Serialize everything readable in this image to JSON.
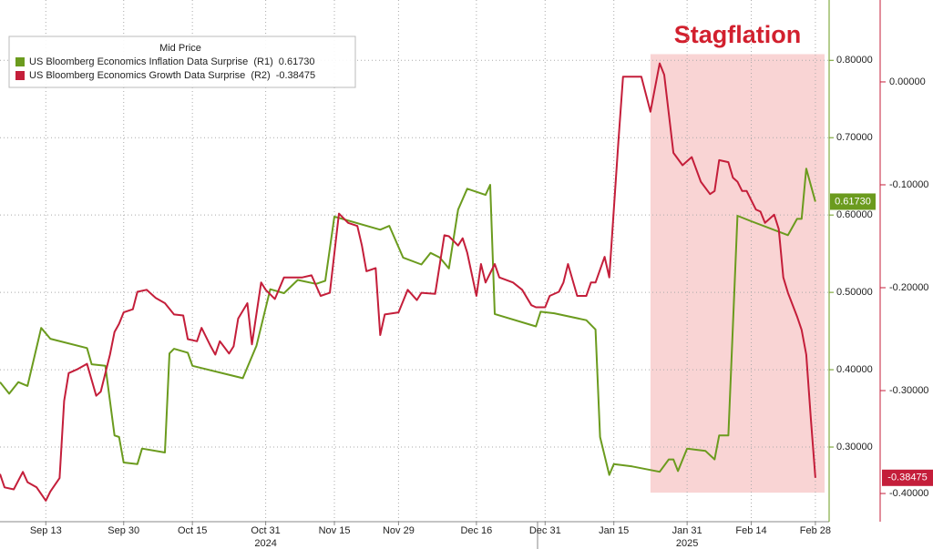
{
  "chart_data": {
    "type": "line",
    "legend_title": "Mid Price",
    "legend": "upper left",
    "grid": true,
    "xlim": [
      "2024-09-03",
      "2025-03-03"
    ],
    "xticks": [
      {
        "value": "2024-09-13",
        "label": "Sep 13"
      },
      {
        "value": "2024-09-30",
        "label": "Sep 30"
      },
      {
        "value": "2024-10-15",
        "label": "Oct 15"
      },
      {
        "value": "2024-10-31",
        "label": "Oct 31"
      },
      {
        "value": "2024-11-15",
        "label": "Nov 15"
      },
      {
        "value": "2024-11-29",
        "label": "Nov 29"
      },
      {
        "value": "2024-12-16",
        "label": "Dec 16"
      },
      {
        "value": "2024-12-31",
        "label": "Dec 31"
      },
      {
        "value": "2025-01-15",
        "label": "Jan 15"
      },
      {
        "value": "2025-01-31",
        "label": "Jan 31"
      },
      {
        "value": "2025-02-14",
        "label": "Feb 14"
      },
      {
        "value": "2025-02-28",
        "label": "Feb 28"
      }
    ],
    "year_labels": [
      {
        "value": "2024-10-31",
        "label": "2024"
      },
      {
        "value": "2025-01-31",
        "label": "2025"
      }
    ],
    "ylim": [
      0.2035,
      0.878
    ],
    "yticks": [
      {
        "value": 0.8,
        "label": "0.80000"
      },
      {
        "value": 0.7,
        "label": "0.70000"
      },
      {
        "value": 0.6,
        "label": "0.60000"
      },
      {
        "value": 0.5,
        "label": "0.50000"
      },
      {
        "value": 0.4,
        "label": "0.40000"
      },
      {
        "value": 0.3,
        "label": "0.30000"
      }
    ],
    "y2lim": [
      -0.4274,
      0.0796
    ],
    "y2ticks": [
      {
        "value": 0,
        "label": "0.00000"
      },
      {
        "value": -0.1,
        "label": "-0.10000"
      },
      {
        "value": -0.2,
        "label": "-0.20000"
      },
      {
        "value": -0.3,
        "label": "-0.30000"
      },
      {
        "value": -0.4,
        "label": "-0.40000"
      }
    ],
    "shade": {
      "label": "Stagflation",
      "x": [
        "2025-01-23",
        "2025-03-02"
      ],
      "y": [
        0.808,
        0.241
      ],
      "color": "#f9d4d4",
      "label_color": "#d2202e"
    },
    "series": [
      {
        "name": "US Bloomberg Economics Inflation Data Surprise  (R1)",
        "last_label": "0.61730",
        "color": "#6b9b1e",
        "axis": "y",
        "x": [
          "2024-09-03",
          "2024-09-05",
          "2024-09-07",
          "2024-09-09",
          "2024-09-12",
          "2024-09-14",
          "2024-09-22",
          "2024-09-23",
          "2024-09-26",
          "2024-09-28",
          "2024-09-29",
          "2024-09-30",
          "2024-10-03",
          "2024-10-04",
          "2024-10-09",
          "2024-10-10",
          "2024-10-11",
          "2024-10-14",
          "2024-10-15",
          "2024-10-26",
          "2024-10-29",
          "2024-11-01",
          "2024-11-04",
          "2024-11-07",
          "2024-11-11",
          "2024-11-13",
          "2024-11-15",
          "2024-11-25",
          "2024-11-27",
          "2024-11-30",
          "2024-12-04",
          "2024-12-06",
          "2024-12-08",
          "2024-12-10",
          "2024-12-12",
          "2024-12-14",
          "2024-12-18",
          "2024-12-19",
          "2024-12-20",
          "2024-12-29",
          "2024-12-30",
          "2025-01-02",
          "2025-01-09",
          "2025-01-11",
          "2025-01-12",
          "2025-01-14",
          "2025-01-15",
          "2025-01-19",
          "2025-01-25",
          "2025-01-27",
          "2025-01-28",
          "2025-01-29",
          "2025-01-31",
          "2025-02-04",
          "2025-02-06",
          "2025-02-07",
          "2025-02-09",
          "2025-02-11",
          "2025-02-14",
          "2025-02-22",
          "2025-02-24",
          "2025-02-25",
          "2025-02-26",
          "2025-02-28"
        ],
        "values": [
          0.384,
          0.369,
          0.384,
          0.379,
          0.454,
          0.44,
          0.428,
          0.407,
          0.405,
          0.315,
          0.313,
          0.28,
          0.278,
          0.298,
          0.293,
          0.421,
          0.427,
          0.422,
          0.405,
          0.389,
          0.431,
          0.504,
          0.499,
          0.516,
          0.511,
          0.515,
          0.598,
          0.581,
          0.586,
          0.545,
          0.536,
          0.551,
          0.545,
          0.531,
          0.607,
          0.634,
          0.626,
          0.639,
          0.472,
          0.456,
          0.475,
          0.473,
          0.464,
          0.452,
          0.313,
          0.264,
          0.278,
          0.275,
          0.268,
          0.284,
          0.284,
          0.269,
          0.298,
          0.295,
          0.284,
          0.315,
          0.315,
          0.599,
          0.592,
          0.574,
          0.595,
          0.595,
          0.66,
          0.6173
        ]
      },
      {
        "name": "US Bloomberg Economics Growth Data Surprise  (R2)",
        "last_label": "-0.38475",
        "color": "#c41e3a",
        "axis": "y2",
        "x": [
          "2024-09-03",
          "2024-09-04",
          "2024-09-06",
          "2024-09-08",
          "2024-09-09",
          "2024-09-11",
          "2024-09-13",
          "2024-09-14",
          "2024-09-16",
          "2024-09-17",
          "2024-09-18",
          "2024-09-20",
          "2024-09-22",
          "2024-09-24",
          "2024-09-25",
          "2024-09-27",
          "2024-09-28",
          "2024-09-29",
          "2024-09-30",
          "2024-10-02",
          "2024-10-03",
          "2024-10-05",
          "2024-10-07",
          "2024-10-09",
          "2024-10-11",
          "2024-10-13",
          "2024-10-14",
          "2024-10-16",
          "2024-10-17",
          "2024-10-19",
          "2024-10-20",
          "2024-10-21",
          "2024-10-23",
          "2024-10-24",
          "2024-10-25",
          "2024-10-27",
          "2024-10-28",
          "2024-10-30",
          "2024-10-31",
          "2024-11-02",
          "2024-11-04",
          "2024-11-06",
          "2024-11-08",
          "2024-11-10",
          "2024-11-12",
          "2024-11-14",
          "2024-11-16",
          "2024-11-18",
          "2024-11-20",
          "2024-11-21",
          "2024-11-22",
          "2024-11-24",
          "2024-11-25",
          "2024-11-26",
          "2024-11-29",
          "2024-12-01",
          "2024-12-03",
          "2024-12-04",
          "2024-12-07",
          "2024-12-09",
          "2024-12-10",
          "2024-12-12",
          "2024-12-13",
          "2024-12-14",
          "2024-12-16",
          "2024-12-17",
          "2024-12-18",
          "2024-12-20",
          "2024-12-21",
          "2024-12-24",
          "2024-12-26",
          "2024-12-28",
          "2024-12-29",
          "2024-12-31",
          "2025-01-01",
          "2025-01-03",
          "2025-01-04",
          "2025-01-05",
          "2025-01-07",
          "2025-01-09",
          "2025-01-10",
          "2025-01-11",
          "2025-01-13",
          "2025-01-14",
          "2025-01-16",
          "2025-01-17",
          "2025-01-21",
          "2025-01-23",
          "2025-01-25",
          "2025-01-26",
          "2025-01-28",
          "2025-01-30",
          "2025-02-01",
          "2025-02-03",
          "2025-02-05",
          "2025-02-06",
          "2025-02-07",
          "2025-02-09",
          "2025-02-10",
          "2025-02-11",
          "2025-02-12",
          "2025-02-13",
          "2025-02-15",
          "2025-02-16",
          "2025-02-17",
          "2025-02-19",
          "2025-02-20",
          "2025-02-21",
          "2025-02-22",
          "2025-02-24",
          "2025-02-25",
          "2025-02-26",
          "2025-02-27",
          "2025-02-28"
        ],
        "values": [
          -0.381,
          -0.394,
          -0.396,
          -0.379,
          -0.389,
          -0.394,
          -0.407,
          -0.398,
          -0.385,
          -0.31,
          -0.283,
          -0.279,
          -0.274,
          -0.305,
          -0.301,
          -0.265,
          -0.243,
          -0.235,
          -0.224,
          -0.221,
          -0.204,
          -0.202,
          -0.21,
          -0.215,
          -0.226,
          -0.227,
          -0.25,
          -0.252,
          -0.239,
          -0.257,
          -0.265,
          -0.252,
          -0.264,
          -0.257,
          -0.23,
          -0.215,
          -0.255,
          -0.195,
          -0.202,
          -0.211,
          -0.19,
          -0.19,
          -0.19,
          -0.188,
          -0.208,
          -0.205,
          -0.128,
          -0.137,
          -0.14,
          -0.159,
          -0.184,
          -0.181,
          -0.246,
          -0.226,
          -0.224,
          -0.202,
          -0.212,
          -0.205,
          -0.206,
          -0.149,
          -0.15,
          -0.159,
          -0.152,
          -0.166,
          -0.208,
          -0.177,
          -0.195,
          -0.177,
          -0.19,
          -0.195,
          -0.202,
          -0.217,
          -0.219,
          -0.219,
          -0.208,
          -0.204,
          -0.195,
          -0.177,
          -0.208,
          -0.208,
          -0.195,
          -0.195,
          -0.17,
          -0.19,
          -0.058,
          0.005,
          0.005,
          -0.029,
          0.018,
          0.007,
          -0.069,
          -0.081,
          -0.073,
          -0.097,
          -0.109,
          -0.106,
          -0.076,
          -0.078,
          -0.093,
          -0.097,
          -0.106,
          -0.106,
          -0.124,
          -0.126,
          -0.137,
          -0.129,
          -0.143,
          -0.19,
          -0.205,
          -0.228,
          -0.241,
          -0.265,
          -0.327,
          -0.38475
        ]
      }
    ]
  }
}
